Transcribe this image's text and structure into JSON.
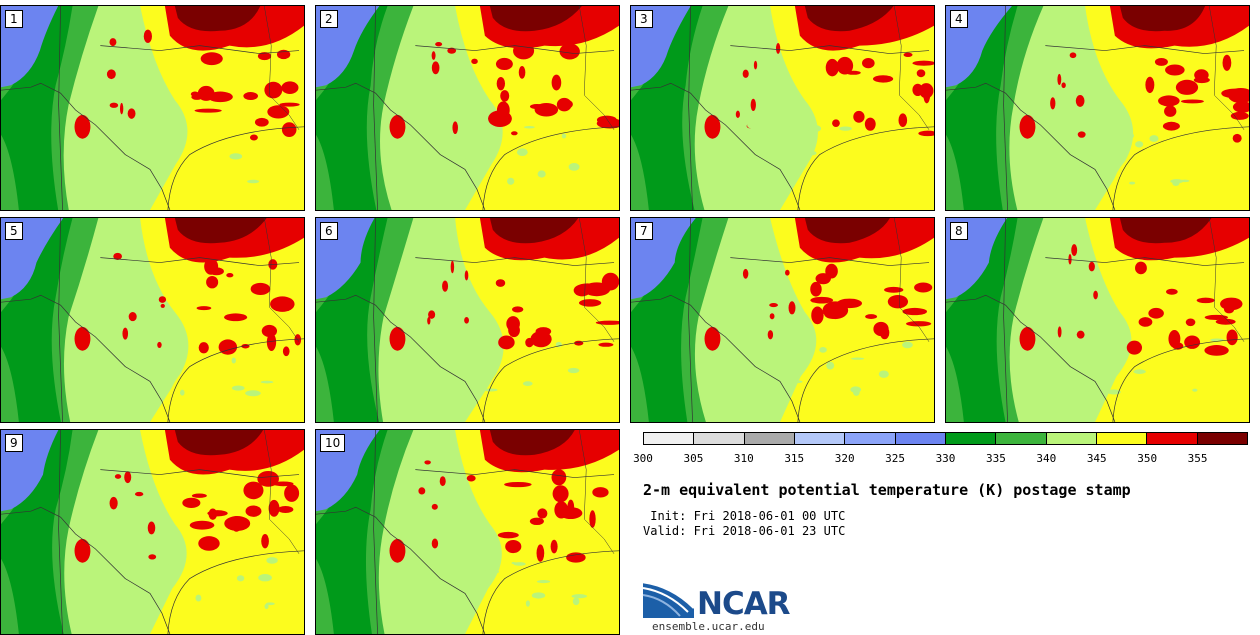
{
  "panels": [
    {
      "label": "1"
    },
    {
      "label": "2"
    },
    {
      "label": "3"
    },
    {
      "label": "4"
    },
    {
      "label": "5"
    },
    {
      "label": "6"
    },
    {
      "label": "7"
    },
    {
      "label": "8"
    },
    {
      "label": "9"
    },
    {
      "label": "10"
    }
  ],
  "colorbar": {
    "colors": [
      "#f0f0f0",
      "#dcdcdc",
      "#aaaaaa",
      "#b4c8f8",
      "#8ca4f8",
      "#6c84f0",
      "#009a1a",
      "#3cb43c",
      "#baf47a",
      "#fcfc1e",
      "#e60000",
      "#7a0000"
    ],
    "ticks": [
      "300",
      "305",
      "310",
      "315",
      "320",
      "325",
      "330",
      "335",
      "340",
      "345",
      "350",
      "355"
    ]
  },
  "title": "2-m equivalent potential temperature (K) postage stamp",
  "init_text": " Init: Fri 2018-06-01 00 UTC",
  "valid_text": "Valid: Fri 2018-06-01 23 UTC",
  "logo": {
    "text": "NCAR"
  },
  "website": "ensemble.ucar.edu",
  "map_colors": {
    "blue": "#6c84f0",
    "dark_green": "#009a1a",
    "green": "#3cb43c",
    "light_green": "#baf47a",
    "yellow": "#fcfc1e",
    "red": "#e60000",
    "dark_red": "#7a0000"
  }
}
